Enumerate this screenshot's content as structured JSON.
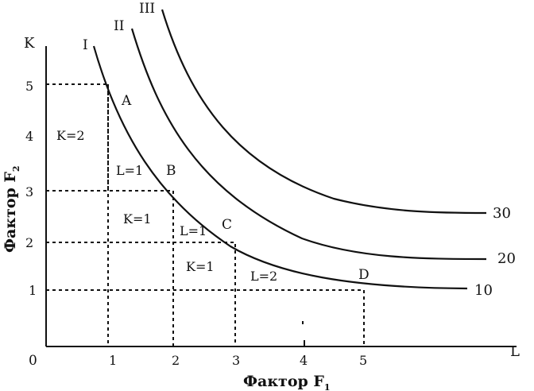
{
  "axes": {
    "y_letter": "K",
    "x_letter": "L",
    "y_title": "Фактор F",
    "y_title_sub": "2",
    "x_title": "Фактор F",
    "x_title_sub": "1",
    "origin": "0",
    "x_ticks": [
      "1",
      "2",
      "3",
      "4",
      "5"
    ],
    "y_ticks": [
      "1",
      "2",
      "3",
      "4",
      "5"
    ]
  },
  "curves": [
    {
      "roman": "I",
      "value": "10"
    },
    {
      "roman": "II",
      "value": "20"
    },
    {
      "roman": "III",
      "value": "30"
    }
  ],
  "points": {
    "A": "A",
    "B": "B",
    "C": "C",
    "D": "D"
  },
  "steps": {
    "k_1": "K=2",
    "l_1": "L=1",
    "k_2": "K=1",
    "l_2": "L=1",
    "k_3": "K=1",
    "l_3": "L=2"
  }
}
